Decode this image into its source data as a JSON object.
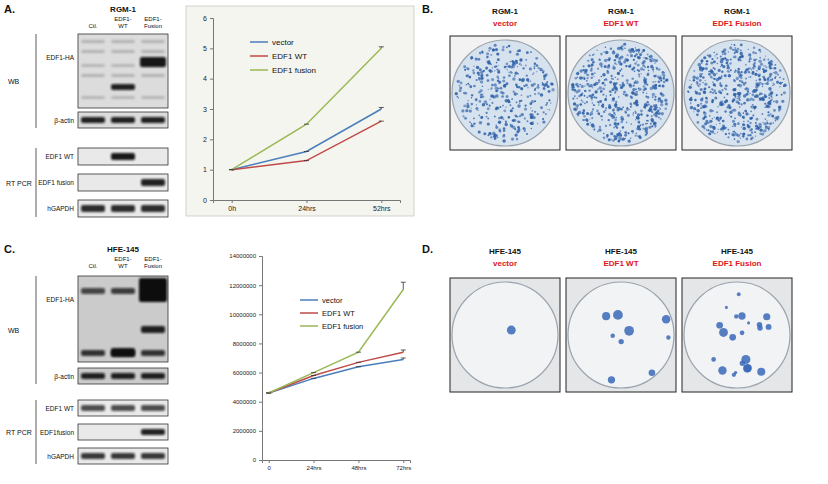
{
  "figure": {
    "panels": [
      {
        "label": "A.",
        "cell_line": "RGM-1",
        "lanes": [
          "Ctl.",
          "EDF1-WT",
          "EDF1-Fusion"
        ],
        "wb_label": "WB",
        "wb_rows": [
          "EDF1-HA",
          "β-actin"
        ],
        "rt_label": "RT PCR",
        "rt_rows": [
          "EDF1 WT",
          "EDF1 fusion",
          "hGAPDH"
        ]
      },
      {
        "label": "B.",
        "plates": [
          {
            "cell_line": "RGM-1",
            "condition": "vector"
          },
          {
            "cell_line": "RGM-1",
            "condition": "EDF1 WT"
          },
          {
            "cell_line": "RGM-1",
            "condition": "EDF1 Fusion"
          }
        ]
      },
      {
        "label": "C.",
        "cell_line": "HFE-145",
        "lanes": [
          "Ctl.",
          "EDF1-WT",
          "EDF1-Fusion"
        ],
        "wb_label": "WB",
        "wb_rows": [
          "EDF1-HA",
          "β-actin"
        ],
        "rt_label": "RT PCR",
        "rt_rows": [
          "EDF1 WT",
          "EDF1fusion",
          "hGAPDH"
        ]
      },
      {
        "label": "D.",
        "plates": [
          {
            "cell_line": "HFE-145",
            "condition": "vector"
          },
          {
            "cell_line": "HFE-145",
            "condition": "EDF1 WT"
          },
          {
            "cell_line": "HFE-145",
            "condition": "EDF1 Fusion"
          }
        ]
      }
    ]
  },
  "chart_data": [
    {
      "type": "line",
      "categories": [
        "0h",
        "24hrs",
        "52hrs"
      ],
      "series": [
        {
          "name": "vector",
          "color": "#4a7ebb",
          "values": [
            1,
            1.6,
            3
          ],
          "errors": [
            0,
            0,
            0.05
          ]
        },
        {
          "name": "EDF1 WT",
          "color": "#be4b48",
          "values": [
            1,
            1.3,
            2.6
          ],
          "errors": [
            0,
            0,
            0
          ]
        },
        {
          "name": "EDF1 fusion",
          "color": "#98b954",
          "values": [
            1,
            2.5,
            5
          ],
          "errors": [
            0,
            0,
            0.05
          ]
        }
      ],
      "ylim": [
        0,
        6
      ],
      "yticks": [
        0,
        1,
        2,
        3,
        4,
        5,
        6
      ],
      "legend": "upper left"
    },
    {
      "type": "line",
      "categories": [
        "0",
        "24hrs",
        "48hrs",
        "72hrs"
      ],
      "series": [
        {
          "name": "vector",
          "color": "#4a7ebb",
          "values": [
            4600000,
            5600000,
            6400000,
            6900000
          ],
          "errors": [
            0,
            0,
            0,
            100000
          ]
        },
        {
          "name": "EDF1 WT",
          "color": "#be4b48",
          "values": [
            4600000,
            5800000,
            6700000,
            7400000
          ],
          "errors": [
            0,
            0,
            0,
            150000
          ]
        },
        {
          "name": "EDF1 fusion",
          "color": "#98b954",
          "values": [
            4600000,
            6000000,
            7400000,
            11700000
          ],
          "errors": [
            0,
            0,
            0,
            500000
          ]
        }
      ],
      "ylim": [
        0,
        14000000
      ],
      "yticks": [
        0,
        2000000,
        4000000,
        6000000,
        8000000,
        10000000,
        12000000,
        14000000
      ],
      "legend": "upper left"
    }
  ]
}
